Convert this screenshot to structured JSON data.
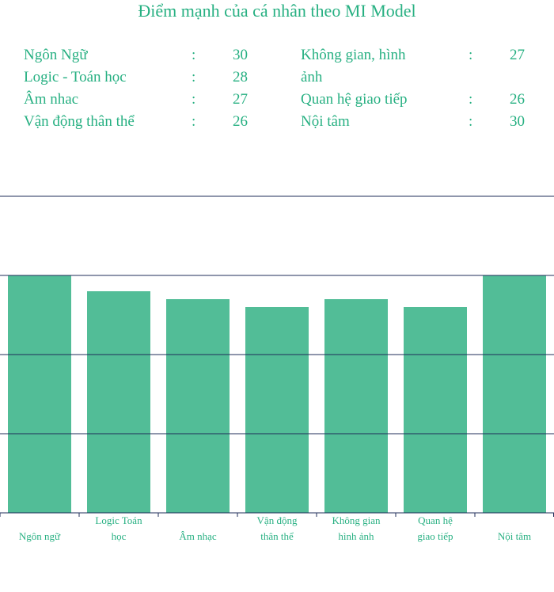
{
  "title": "Điểm mạnh của cá nhân theo MI Model",
  "scores_left": [
    {
      "label": "Ngôn Ngữ",
      "sep": ":",
      "value": "30"
    },
    {
      "label": "Logic - Toán học",
      "sep": ":",
      "value": "28"
    },
    {
      "label": "Âm nhac",
      "sep": ":",
      "value": "27"
    },
    {
      "label": "Vận động thân thể",
      "sep": ":",
      "value": "26"
    }
  ],
  "scores_right": [
    {
      "label": "Không gian, hình ảnh",
      "sep": ":",
      "value": "27"
    },
    {
      "label": "Quan hệ giao tiếp",
      "sep": ":",
      "value": "26"
    },
    {
      "label": "Nội tâm",
      "sep": ":",
      "value": "30"
    }
  ],
  "colors": {
    "accent": "#27b082",
    "bar": "#52bd97",
    "grid": "#1f2d5a"
  },
  "chart_data": {
    "type": "bar",
    "categories": [
      [
        "Ngôn ngữ"
      ],
      [
        "Logic Toán",
        "học"
      ],
      [
        "Âm nhạc"
      ],
      [
        "Vận động",
        "thân thể"
      ],
      [
        "Không gian",
        "hình ảnh"
      ],
      [
        "Quan hệ",
        "giao tiếp"
      ],
      [
        "Nội tâm"
      ]
    ],
    "values": [
      30,
      28,
      27,
      26,
      27,
      26,
      30
    ],
    "ylim": [
      0,
      40
    ],
    "grid": true,
    "title": "",
    "xlabel": "",
    "ylabel": ""
  }
}
